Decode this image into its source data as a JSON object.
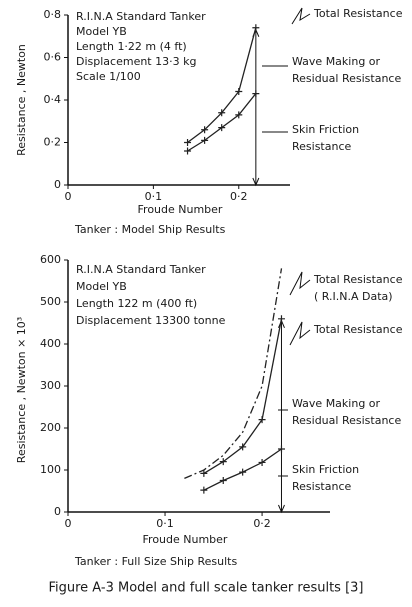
{
  "chart_data": [
    {
      "type": "line",
      "info_lines": [
        "R.I.N.A Standard Tanker",
        "Model YB",
        "Length 1·22 m (4 ft)",
        "Displacement 13·3 kg",
        "Scale 1/100"
      ],
      "ylabel": "Resistance , Newton",
      "xlabel": "Froude Number",
      "caption": "Tanker : Model Ship Results",
      "xlim": [
        0,
        0.26
      ],
      "ylim": [
        0,
        0.8
      ],
      "xticks": [
        0,
        {
          "value": 0.1,
          "label": "0·1"
        },
        {
          "value": 0.2,
          "label": "0·2"
        }
      ],
      "yticks": [
        0,
        {
          "value": 0.2,
          "label": "0·2"
        },
        {
          "value": 0.4,
          "label": "0·4"
        },
        {
          "value": 0.6,
          "label": "0·6"
        },
        {
          "value": 0.8,
          "label": "0·8"
        }
      ],
      "series": [
        {
          "x": [
            0.14,
            0.16,
            0.18,
            0.2,
            0.22
          ],
          "values": [
            0.2,
            0.26,
            0.34,
            0.44,
            0.74
          ],
          "color": "#222222",
          "style": "solid"
        },
        {
          "x": [
            0.14,
            0.16,
            0.18,
            0.2,
            0.22
          ],
          "values": [
            0.16,
            0.21,
            0.27,
            0.33,
            0.43
          ],
          "color": "#222222",
          "style": "solid"
        }
      ],
      "annotations": [
        {
          "lines": [
            "Total Resistance"
          ]
        },
        {
          "lines": [
            "Wave Making or",
            "Residual Resistance"
          ]
        },
        {
          "lines": [
            "Skin Friction",
            "Resistance"
          ]
        }
      ]
    },
    {
      "type": "line",
      "info_lines": [
        "R.I.N.A Standard Tanker",
        "Model YB",
        "Length 122 m (400 ft)",
        "Displacement 13300 tonne"
      ],
      "ylabel": "Resistance , Newton × 10³",
      "xlabel": "Froude Number",
      "caption": "Tanker : Full Size Ship Results",
      "xlim": [
        0,
        0.27
      ],
      "ylim": [
        0,
        600
      ],
      "xticks": [
        0,
        {
          "value": 0.1,
          "label": "0·1"
        },
        {
          "value": 0.2,
          "label": "0·2"
        }
      ],
      "yticks": [
        0,
        100,
        200,
        300,
        400,
        500,
        600
      ],
      "series": [
        {
          "x": [
            0.14,
            0.16,
            0.18,
            0.2,
            0.22
          ],
          "values": [
            92,
            120,
            155,
            220,
            460
          ],
          "color": "#222222",
          "style": "solid"
        },
        {
          "x": [
            0.14,
            0.16,
            0.18,
            0.2,
            0.22
          ],
          "values": [
            52,
            75,
            95,
            118,
            150
          ],
          "color": "#222222",
          "style": "solid"
        },
        {
          "x": [
            0.12,
            0.14,
            0.16,
            0.18,
            0.2,
            0.22
          ],
          "values": [
            80,
            100,
            135,
            190,
            300,
            580
          ],
          "color": "#222222",
          "style": "dash-dot"
        }
      ],
      "annotations": [
        {
          "lines": [
            "Total Resistance",
            "( R.I.N.A Data)"
          ]
        },
        {
          "lines": [
            "Total Resistance"
          ]
        },
        {
          "lines": [
            "Wave Making or",
            "Residual Resistance"
          ]
        },
        {
          "lines": [
            "Skin Friction",
            "Resistance"
          ]
        }
      ]
    }
  ],
  "figure_caption": "Figure A-3 Model and full scale tanker results [3]"
}
